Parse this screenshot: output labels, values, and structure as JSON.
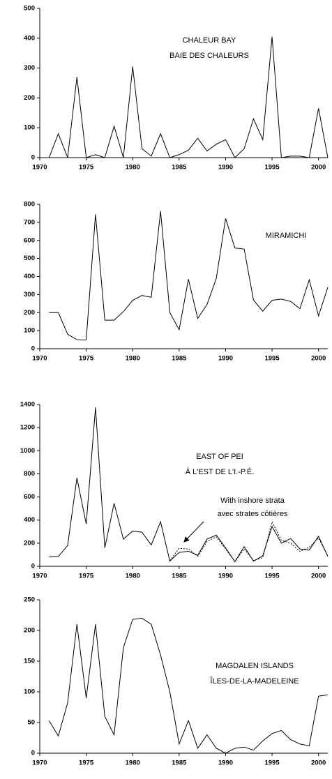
{
  "chart_data": [
    {
      "type": "line",
      "title": "CHALEUR BAY",
      "subtitle": "BAIE DES CHALEURS",
      "x": [
        1971,
        1972,
        1973,
        1974,
        1975,
        1976,
        1977,
        1978,
        1979,
        1980,
        1981,
        1982,
        1983,
        1984,
        1985,
        1986,
        1987,
        1988,
        1989,
        1990,
        1991,
        1992,
        1993,
        1994,
        1995,
        1996,
        1997,
        1998,
        1999,
        2000,
        2001
      ],
      "series": [
        {
          "color": "#000000",
          "values": [
            0,
            80,
            0,
            270,
            0,
            10,
            0,
            105,
            0,
            305,
            30,
            5,
            80,
            0,
            10,
            25,
            65,
            22,
            45,
            60,
            0,
            30,
            130,
            60,
            405,
            0,
            5,
            5,
            0,
            165,
            0
          ]
        }
      ],
      "xlim": [
        1970,
        2001
      ],
      "xticks": [
        1970,
        1975,
        1980,
        1985,
        1990,
        1995,
        2000
      ],
      "ylim": [
        0,
        500
      ],
      "yticks": [
        0,
        100,
        200,
        300,
        400,
        500
      ]
    },
    {
      "type": "line",
      "title": "MIRAMICHI",
      "x": [
        1971,
        1972,
        1973,
        1974,
        1975,
        1976,
        1977,
        1978,
        1979,
        1980,
        1981,
        1982,
        1983,
        1984,
        1985,
        1986,
        1987,
        1988,
        1989,
        1990,
        1991,
        1992,
        1993,
        1994,
        1995,
        1996,
        1997,
        1998,
        1999,
        2000,
        2001
      ],
      "series": [
        {
          "color": "#000000",
          "values": [
            200,
            200,
            80,
            50,
            48,
            745,
            158,
            158,
            205,
            268,
            295,
            285,
            762,
            200,
            105,
            385,
            168,
            245,
            390,
            722,
            558,
            552,
            270,
            208,
            268,
            275,
            262,
            222,
            382,
            182,
            340
          ]
        }
      ],
      "xlim": [
        1970,
        2001
      ],
      "xticks": [
        1970,
        1975,
        1980,
        1985,
        1990,
        1995,
        2000
      ],
      "ylim": [
        0,
        800
      ],
      "yticks": [
        0,
        100,
        200,
        300,
        400,
        500,
        600,
        700,
        800
      ]
    },
    {
      "type": "line",
      "title": "EAST OF PEI",
      "subtitle": "À L'EST DE L'I.-P.É.",
      "annotation": [
        "With inshore strata",
        "avec strates côtières"
      ],
      "x": [
        1971,
        1972,
        1973,
        1974,
        1975,
        1976,
        1977,
        1978,
        1979,
        1980,
        1981,
        1982,
        1983,
        1984,
        1985,
        1986,
        1987,
        1988,
        1989,
        1990,
        1991,
        1992,
        1993,
        1994,
        1995,
        1996,
        1997,
        1998,
        1999,
        2000,
        2001
      ],
      "series": [
        {
          "color": "#000000",
          "values": [
            80,
            85,
            180,
            765,
            365,
            1375,
            160,
            545,
            235,
            305,
            295,
            185,
            385,
            45,
            120,
            130,
            95,
            235,
            270,
            160,
            40,
            170,
            45,
            90,
            345,
            200,
            240,
            150,
            140,
            260,
            85
          ]
        },
        {
          "color": "#000000",
          "dashed": true,
          "values": [
            null,
            null,
            null,
            null,
            null,
            null,
            null,
            null,
            null,
            null,
            null,
            null,
            null,
            50,
            155,
            150,
            85,
            215,
            255,
            150,
            40,
            150,
            50,
            75,
            385,
            225,
            200,
            130,
            165,
            245,
            90
          ]
        }
      ],
      "xlim": [
        1970,
        2001
      ],
      "xticks": [
        1970,
        1975,
        1980,
        1985,
        1990,
        1995,
        2000
      ],
      "ylim": [
        0,
        1400
      ],
      "yticks": [
        0,
        200,
        400,
        600,
        800,
        1000,
        1200,
        1400
      ]
    },
    {
      "type": "line",
      "title": "MAGDALEN ISLANDS",
      "subtitle": "ÎLES-DE-LA-MADELEINE",
      "x": [
        1971,
        1972,
        1973,
        1974,
        1975,
        1976,
        1977,
        1978,
        1979,
        1980,
        1981,
        1982,
        1983,
        1984,
        1985,
        1986,
        1987,
        1988,
        1989,
        1990,
        1991,
        1992,
        1993,
        1994,
        1995,
        1996,
        1997,
        1998,
        1999,
        2000,
        2001
      ],
      "series": [
        {
          "color": "#000000",
          "values": [
            53,
            28,
            82,
            210,
            90,
            210,
            60,
            30,
            172,
            218,
            220,
            210,
            160,
            100,
            15,
            53,
            8,
            30,
            8,
            0,
            8,
            10,
            5,
            20,
            32,
            37,
            22,
            15,
            12,
            93,
            95
          ]
        }
      ],
      "xlim": [
        1970,
        2001
      ],
      "xticks": [
        1970,
        1975,
        1980,
        1985,
        1990,
        1995,
        2000
      ],
      "ylim": [
        0,
        250
      ],
      "yticks": [
        0,
        50,
        100,
        150,
        200,
        250
      ]
    }
  ]
}
